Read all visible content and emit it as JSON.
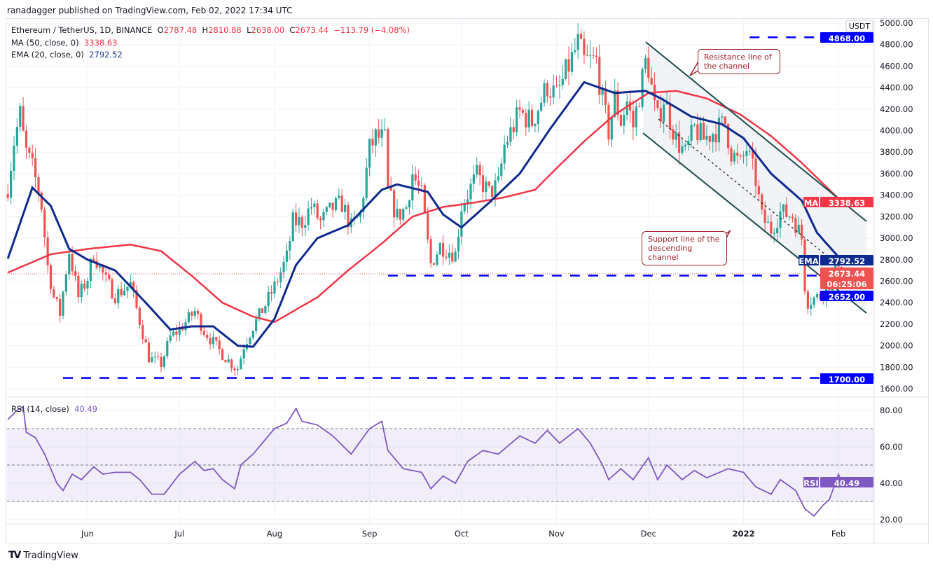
{
  "header": {
    "published": "ranadagger published on TradingView.com, Feb 02, 2022 17:34 UTC"
  },
  "legend": {
    "symbol": "Ethereum / TetherUS, 1D, BINANCE",
    "o_label": "O",
    "o": "2787.48",
    "h_label": "H",
    "h": "2810.88",
    "l_label": "L",
    "l": "2638.00",
    "c_label": "C",
    "c": "2673.44",
    "change": "−113.79 (−4.08%)",
    "ma": "MA (50, close, 0)",
    "ma_value": "3338.63",
    "ema": "EMA (20, close, 0)",
    "ema_value": "2792.52",
    "rsi": "RSI (14, close)",
    "rsi_value": "40.49"
  },
  "annotations": {
    "resistance": "Resistance line of the channel",
    "support": "Support line of the descending channel"
  },
  "badges": {
    "currency": "USDT",
    "level_high": "4868.00",
    "ma_label": "MA",
    "ma_value": "3338.63",
    "ema_label": "EMA",
    "ema_value": "2792.52",
    "last_price": "2673.44",
    "countdown": "06:25:06",
    "level_mid": "2652.00",
    "level_low": "1700.00",
    "rsi_label": "RSI",
    "rsi_value": "40.49"
  },
  "footer": {
    "brand": "TradingView"
  },
  "colors": {
    "up": "#26a69a",
    "down": "#ef5350",
    "ma": "#f23645",
    "ema": "#0d2a8f",
    "rsi": "#7e57c2",
    "level": "#0000ff",
    "channel": "#1b4d4d"
  },
  "chart_data": {
    "type": "candlestick",
    "price_axis": {
      "ylim": [
        1600,
        5000
      ],
      "ticks": [
        "5000.00",
        "4800.00",
        "4600.00",
        "4400.00",
        "4200.00",
        "4000.00",
        "3800.00",
        "3600.00",
        "3400.00",
        "3200.00",
        "3000.00",
        "2800.00",
        "2600.00",
        "2400.00",
        "2200.00",
        "2000.00",
        "1800.00",
        "1600.00"
      ]
    },
    "rsi_axis": {
      "ylim": [
        15,
        88
      ],
      "ticks": [
        "80.00",
        "60.00",
        "40.00",
        "20.00"
      ],
      "bands": [
        70,
        50,
        30
      ]
    },
    "time_axis": {
      "labels": [
        [
          "Jun",
          "2021-06-01"
        ],
        [
          "Jul",
          "2021-07-01"
        ],
        [
          "Aug",
          "2021-08-01"
        ],
        [
          "Sep",
          "2021-09-01"
        ],
        [
          "Oct",
          "2021-10-01"
        ],
        [
          "Nov",
          "2021-11-01"
        ],
        [
          "Dec",
          "2021-12-01"
        ],
        [
          "2022",
          "2022-01-01"
        ],
        [
          "Feb",
          "2022-02-01"
        ]
      ]
    },
    "levels": [
      {
        "value": 4868,
        "from": "2022-01-03"
      },
      {
        "value": 2652,
        "from": "2021-09-07"
      },
      {
        "value": 1700,
        "from": "2021-05-24"
      }
    ],
    "close": [
      [
        "2021-05-06",
        3480
      ],
      [
        "2021-05-08",
        3900
      ],
      [
        "2021-05-10",
        4150
      ],
      [
        "2021-05-11",
        3950
      ],
      [
        "2021-05-12",
        3800
      ],
      [
        "2021-05-14",
        3650
      ],
      [
        "2021-05-16",
        3450
      ],
      [
        "2021-05-17",
        3300
      ],
      [
        "2021-05-19",
        2740
      ],
      [
        "2021-05-21",
        2450
      ],
      [
        "2021-05-23",
        2300
      ],
      [
        "2021-05-25",
        2700
      ],
      [
        "2021-05-26",
        2880
      ],
      [
        "2021-05-29",
        2450
      ],
      [
        "2021-06-01",
        2630
      ],
      [
        "2021-06-03",
        2860
      ],
      [
        "2021-06-07",
        2600
      ],
      [
        "2021-06-10",
        2470
      ],
      [
        "2021-06-15",
        2570
      ],
      [
        "2021-06-18",
        2230
      ],
      [
        "2021-06-21",
        1890
      ],
      [
        "2021-06-22",
        1870
      ],
      [
        "2021-06-25",
        1830
      ],
      [
        "2021-06-28",
        2080
      ],
      [
        "2021-07-01",
        2150
      ],
      [
        "2021-07-06",
        2320
      ],
      [
        "2021-07-09",
        2140
      ],
      [
        "2021-07-12",
        2030
      ],
      [
        "2021-07-15",
        1920
      ],
      [
        "2021-07-19",
        1800
      ],
      [
        "2021-07-20",
        1790
      ],
      [
        "2021-07-22",
        2000
      ],
      [
        "2021-07-25",
        2180
      ],
      [
        "2021-07-29",
        2380
      ],
      [
        "2021-08-01",
        2550
      ],
      [
        "2021-08-05",
        2820
      ],
      [
        "2021-08-07",
        3150
      ],
      [
        "2021-08-10",
        3150
      ],
      [
        "2021-08-13",
        3300
      ],
      [
        "2021-08-16",
        3150
      ],
      [
        "2021-08-20",
        3280
      ],
      [
        "2021-08-23",
        3320
      ],
      [
        "2021-08-26",
        3100
      ],
      [
        "2021-08-29",
        3220
      ],
      [
        "2021-09-01",
        3830
      ],
      [
        "2021-09-03",
        3940
      ],
      [
        "2021-09-06",
        3920
      ],
      [
        "2021-09-07",
        3430
      ],
      [
        "2021-09-10",
        3200
      ],
      [
        "2021-09-13",
        3290
      ],
      [
        "2021-09-15",
        3600
      ],
      [
        "2021-09-18",
        3400
      ],
      [
        "2021-09-20",
        2950
      ],
      [
        "2021-09-21",
        2760
      ],
      [
        "2021-09-24",
        2930
      ],
      [
        "2021-09-29",
        2850
      ],
      [
        "2021-10-01",
        3300
      ],
      [
        "2021-10-06",
        3580
      ],
      [
        "2021-10-10",
        3420
      ],
      [
        "2021-10-13",
        3500
      ],
      [
        "2021-10-15",
        3860
      ],
      [
        "2021-10-20",
        4170
      ],
      [
        "2021-10-24",
        4080
      ],
      [
        "2021-10-29",
        4420
      ],
      [
        "2021-11-01",
        4320
      ],
      [
        "2021-11-04",
        4530
      ],
      [
        "2021-11-08",
        4810
      ],
      [
        "2021-11-10",
        4640
      ],
      [
        "2021-11-14",
        4650
      ],
      [
        "2021-11-16",
        4270
      ],
      [
        "2021-11-18",
        3990
      ],
      [
        "2021-11-20",
        4300
      ],
      [
        "2021-11-22",
        4090
      ],
      [
        "2021-11-24",
        4270
      ],
      [
        "2021-11-26",
        4040
      ],
      [
        "2021-11-30",
        4630
      ],
      [
        "2021-12-01",
        4590
      ],
      [
        "2021-12-03",
        4200
      ],
      [
        "2021-12-04",
        4100
      ],
      [
        "2021-12-06",
        4300
      ],
      [
        "2021-12-10",
        3920
      ],
      [
        "2021-12-13",
        3780
      ],
      [
        "2021-12-16",
        4020
      ],
      [
        "2021-12-19",
        3920
      ],
      [
        "2021-12-26",
        4070
      ],
      [
        "2021-12-28",
        3800
      ],
      [
        "2021-12-31",
        3680
      ],
      [
        "2022-01-02",
        3830
      ],
      [
        "2022-01-05",
        3540
      ],
      [
        "2022-01-07",
        3190
      ],
      [
        "2022-01-10",
        3080
      ],
      [
        "2022-01-13",
        3240
      ],
      [
        "2022-01-17",
        3210
      ],
      [
        "2022-01-20",
        3000
      ],
      [
        "2022-01-21",
        2560
      ],
      [
        "2022-01-22",
        2410
      ],
      [
        "2022-01-24",
        2440
      ],
      [
        "2022-01-26",
        2460
      ],
      [
        "2022-01-28",
        2550
      ],
      [
        "2022-01-30",
        2610
      ],
      [
        "2022-02-01",
        2790
      ],
      [
        "2022-02-02",
        2673.44
      ]
    ],
    "ema20": [
      [
        "2021-05-06",
        2810
      ],
      [
        "2021-05-14",
        3470
      ],
      [
        "2021-05-20",
        3300
      ],
      [
        "2021-05-26",
        2900
      ],
      [
        "2021-06-01",
        2800
      ],
      [
        "2021-06-10",
        2700
      ],
      [
        "2021-06-20",
        2400
      ],
      [
        "2021-06-28",
        2150
      ],
      [
        "2021-07-05",
        2180
      ],
      [
        "2021-07-12",
        2180
      ],
      [
        "2021-07-20",
        2000
      ],
      [
        "2021-07-25",
        1990
      ],
      [
        "2021-08-01",
        2250
      ],
      [
        "2021-08-08",
        2750
      ],
      [
        "2021-08-15",
        3000
      ],
      [
        "2021-08-25",
        3120
      ],
      [
        "2021-09-05",
        3450
      ],
      [
        "2021-09-10",
        3500
      ],
      [
        "2021-09-20",
        3430
      ],
      [
        "2021-09-25",
        3220
      ],
      [
        "2021-10-01",
        3100
      ],
      [
        "2021-10-10",
        3330
      ],
      [
        "2021-10-20",
        3600
      ],
      [
        "2021-10-30",
        4020
      ],
      [
        "2021-11-10",
        4450
      ],
      [
        "2021-11-20",
        4350
      ],
      [
        "2021-11-30",
        4370
      ],
      [
        "2021-12-05",
        4300
      ],
      [
        "2021-12-15",
        4130
      ],
      [
        "2021-12-25",
        4060
      ],
      [
        "2022-01-01",
        3930
      ],
      [
        "2022-01-10",
        3600
      ],
      [
        "2022-01-20",
        3350
      ],
      [
        "2022-01-25",
        3050
      ],
      [
        "2022-02-02",
        2792.52
      ]
    ],
    "ma50": [
      [
        "2021-05-06",
        2680
      ],
      [
        "2021-05-20",
        2850
      ],
      [
        "2021-06-01",
        2900
      ],
      [
        "2021-06-15",
        2940
      ],
      [
        "2021-06-25",
        2880
      ],
      [
        "2021-07-05",
        2650
      ],
      [
        "2021-07-15",
        2400
      ],
      [
        "2021-07-25",
        2270
      ],
      [
        "2021-08-01",
        2220
      ],
      [
        "2021-08-15",
        2450
      ],
      [
        "2021-08-25",
        2700
      ],
      [
        "2021-09-05",
        2950
      ],
      [
        "2021-09-15",
        3200
      ],
      [
        "2021-09-25",
        3290
      ],
      [
        "2021-10-05",
        3330
      ],
      [
        "2021-10-15",
        3380
      ],
      [
        "2021-10-25",
        3450
      ],
      [
        "2021-11-01",
        3650
      ],
      [
        "2021-11-10",
        3900
      ],
      [
        "2021-11-20",
        4150
      ],
      [
        "2021-12-01",
        4350
      ],
      [
        "2021-12-10",
        4370
      ],
      [
        "2021-12-20",
        4300
      ],
      [
        "2021-12-31",
        4150
      ],
      [
        "2022-01-10",
        3950
      ],
      [
        "2022-01-20",
        3700
      ],
      [
        "2022-02-02",
        3338.63
      ]
    ],
    "rsi": [
      [
        "2021-05-06",
        75
      ],
      [
        "2021-05-09",
        80
      ],
      [
        "2021-05-11",
        82
      ],
      [
        "2021-05-12",
        68
      ],
      [
        "2021-05-15",
        65
      ],
      [
        "2021-05-18",
        56
      ],
      [
        "2021-05-20",
        48
      ],
      [
        "2021-05-22",
        40
      ],
      [
        "2021-05-24",
        36
      ],
      [
        "2021-05-27",
        45
      ],
      [
        "2021-05-30",
        42
      ],
      [
        "2021-06-03",
        49
      ],
      [
        "2021-06-06",
        45
      ],
      [
        "2021-06-10",
        46
      ],
      [
        "2021-06-15",
        46
      ],
      [
        "2021-06-18",
        42
      ],
      [
        "2021-06-22",
        34
      ],
      [
        "2021-06-26",
        34
      ],
      [
        "2021-07-01",
        45
      ],
      [
        "2021-07-06",
        52
      ],
      [
        "2021-07-09",
        47
      ],
      [
        "2021-07-12",
        48
      ],
      [
        "2021-07-15",
        42
      ],
      [
        "2021-07-19",
        37
      ],
      [
        "2021-07-21",
        50
      ],
      [
        "2021-07-25",
        56
      ],
      [
        "2021-08-01",
        70
      ],
      [
        "2021-08-05",
        73
      ],
      [
        "2021-08-08",
        81
      ],
      [
        "2021-08-10",
        74
      ],
      [
        "2021-08-15",
        72
      ],
      [
        "2021-08-20",
        66
      ],
      [
        "2021-08-26",
        56
      ],
      [
        "2021-09-01",
        70
      ],
      [
        "2021-09-05",
        74
      ],
      [
        "2021-09-07",
        58
      ],
      [
        "2021-09-12",
        48
      ],
      [
        "2021-09-18",
        46
      ],
      [
        "2021-09-21",
        37
      ],
      [
        "2021-09-25",
        44
      ],
      [
        "2021-09-29",
        40
      ],
      [
        "2021-10-03",
        52
      ],
      [
        "2021-10-08",
        58
      ],
      [
        "2021-10-13",
        56
      ],
      [
        "2021-10-20",
        66
      ],
      [
        "2021-10-25",
        62
      ],
      [
        "2021-10-29",
        69
      ],
      [
        "2021-11-02",
        62
      ],
      [
        "2021-11-08",
        70
      ],
      [
        "2021-11-12",
        62
      ],
      [
        "2021-11-16",
        50
      ],
      [
        "2021-11-18",
        42
      ],
      [
        "2021-11-22",
        48
      ],
      [
        "2021-11-26",
        42
      ],
      [
        "2021-12-01",
        54
      ],
      [
        "2021-12-04",
        42
      ],
      [
        "2021-12-07",
        50
      ],
      [
        "2021-12-12",
        42
      ],
      [
        "2021-12-16",
        47
      ],
      [
        "2021-12-20",
        43
      ],
      [
        "2021-12-27",
        48
      ],
      [
        "2022-01-01",
        46
      ],
      [
        "2022-01-05",
        38
      ],
      [
        "2022-01-10",
        34
      ],
      [
        "2022-01-13",
        42
      ],
      [
        "2022-01-18",
        36
      ],
      [
        "2022-01-21",
        26
      ],
      [
        "2022-01-24",
        22
      ],
      [
        "2022-01-27",
        28
      ],
      [
        "2022-01-29",
        31
      ],
      [
        "2022-02-01",
        45
      ],
      [
        "2022-02-02",
        40.49
      ]
    ]
  }
}
